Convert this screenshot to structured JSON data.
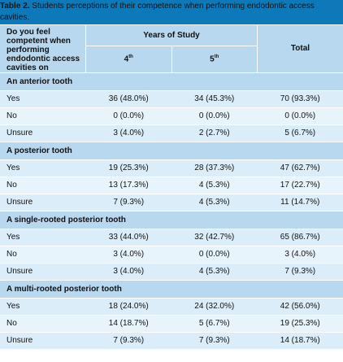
{
  "title_bold": "Table 2.",
  "title_rest": " Students perceptions of their competence when performing endodontic access cavities.",
  "header": {
    "question": "Do you feel competent when performing endodontic access cavities on",
    "years": "Years of Study",
    "year4": "4",
    "year4_sup": "th",
    "year5": "5",
    "year5_sup": "th",
    "total": "Total"
  },
  "groups": [
    {
      "name": "An anterior tooth",
      "rows": [
        {
          "label": "Yes",
          "y4": "36 (48.0%)",
          "y5": "34 (45.3%)",
          "total": "70 (93.3%)"
        },
        {
          "label": "No",
          "y4": "0 (0.0%)",
          "y5": "0 (0.0%)",
          "total": "0 (0.0%)"
        },
        {
          "label": "Unsure",
          "y4": "3 (4.0%)",
          "y5": "2 (2.7%)",
          "total": "5 (6.7%)"
        }
      ]
    },
    {
      "name": "A posterior tooth",
      "rows": [
        {
          "label": "Yes",
          "y4": "19 (25.3%)",
          "y5": "28 (37.3%)",
          "total": "47 (62.7%)"
        },
        {
          "label": "No",
          "y4": "13 (17.3%)",
          "y5": "4 (5.3%)",
          "total": "17 (22.7%)"
        },
        {
          "label": "Unsure",
          "y4": "7 (9.3%)",
          "y5": "4 (5.3%)",
          "total": "11 (14.7%)"
        }
      ]
    },
    {
      "name": "A single-rooted posterior tooth",
      "rows": [
        {
          "label": "Yes",
          "y4": "33 (44.0%)",
          "y5": "32 (42.7%)",
          "total": "65 (86.7%)"
        },
        {
          "label": "No",
          "y4": "3 (4.0%)",
          "y5": "0 (0.0%)",
          "total": "3 (4.0%)"
        },
        {
          "label": "Unsure",
          "y4": "3 (4.0%)",
          "y5": "4 (5.3%)",
          "total": "7 (9.3%)"
        }
      ]
    },
    {
      "name": "A multi-rooted posterior tooth",
      "rows": [
        {
          "label": "Yes",
          "y4": "18 (24.0%)",
          "y5": "24 (32.0%)",
          "total": "42 (56.0%)"
        },
        {
          "label": "No",
          "y4": "14 (18.7%)",
          "y5": "5 (6.7%)",
          "total": "19 (25.3%)"
        },
        {
          "label": "Unsure",
          "y4": "7 (9.3%)",
          "y5": "7 (9.3%)",
          "total": "14 (18.7%)"
        }
      ]
    }
  ]
}
